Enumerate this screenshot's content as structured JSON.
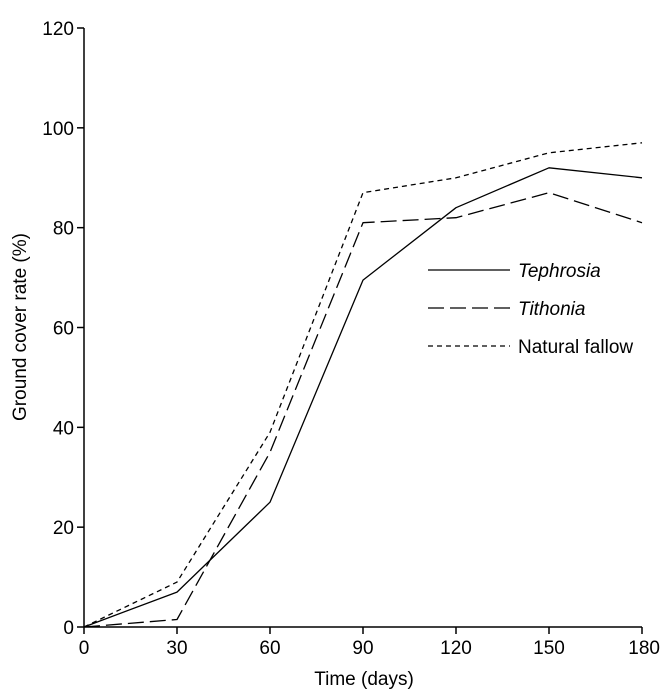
{
  "chart_data": {
    "type": "line",
    "title": "",
    "xlabel": "Time (days)",
    "ylabel": "Ground cover rate (%)",
    "xlim": [
      0,
      180
    ],
    "ylim": [
      0,
      120
    ],
    "x_ticks": [
      "0",
      "30",
      "60",
      "90",
      "120",
      "150",
      "180"
    ],
    "y_ticks": [
      "0",
      "20",
      "40",
      "60",
      "80",
      "100",
      "120"
    ],
    "grid": false,
    "legend_position": "right",
    "series": [
      {
        "name": "Tephrosia",
        "style": "solid",
        "italic": true,
        "x": [
          0,
          30,
          60,
          90,
          120,
          150,
          180
        ],
        "y": [
          0,
          7,
          25,
          69.5,
          84,
          92,
          90
        ]
      },
      {
        "name": "Tithonia",
        "style": "long-dash",
        "italic": true,
        "x": [
          0,
          30,
          60,
          90,
          120,
          150,
          180
        ],
        "y": [
          0,
          1.5,
          35,
          81,
          82,
          87,
          81
        ]
      },
      {
        "name": "Natural fallow",
        "style": "short-dash",
        "italic": false,
        "x": [
          0,
          30,
          60,
          90,
          120,
          150,
          180
        ],
        "y": [
          0,
          9,
          39,
          87,
          90,
          95,
          97
        ]
      }
    ]
  }
}
